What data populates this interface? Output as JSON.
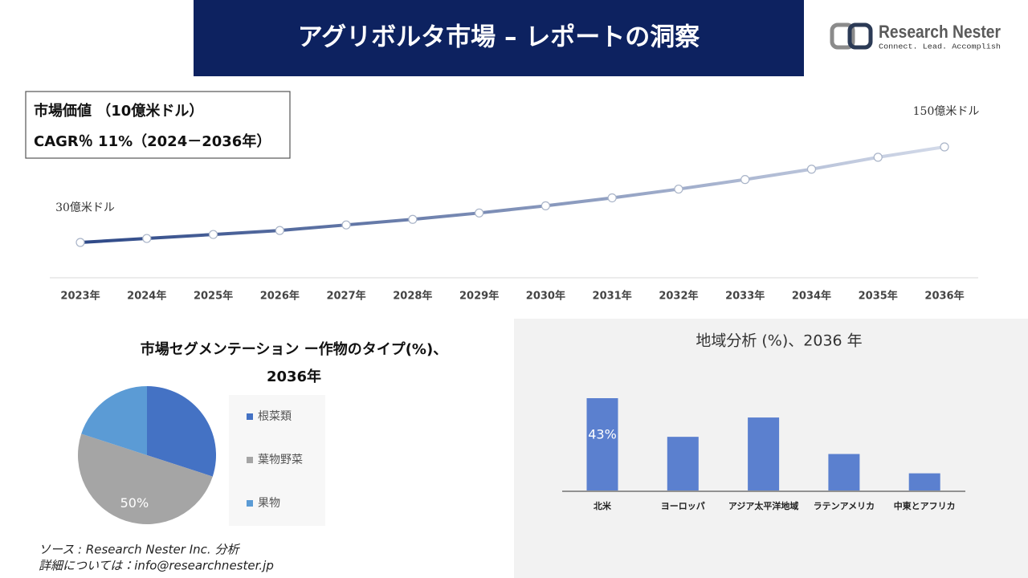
{
  "header": {
    "title": "アグリボルタ市場 – レポートの洞察",
    "logo_name": "Research Nester",
    "logo_tagline": "Connect. Lead. Accomplish"
  },
  "info_box": [
    "市場価値 （10億米ドル）",
    "CAGR％ 11%（2024－2036年）"
  ],
  "chart_data": [
    {
      "type": "line",
      "categories": [
        "2023年",
        "2024年",
        "2025年",
        "2026年",
        "2027年",
        "2028年",
        "2029年",
        "2030年",
        "2031年",
        "2032年",
        "2033年",
        "2034年",
        "2035年",
        "2036年"
      ],
      "values": [
        30,
        35,
        40,
        45,
        52,
        59,
        67,
        76,
        86,
        97,
        109,
        122,
        137,
        150
      ],
      "value_labels": [
        "30億米ドル",
        null,
        null,
        null,
        null,
        null,
        null,
        null,
        null,
        null,
        null,
        null,
        null,
        "150億米ドル"
      ],
      "colors": [
        "#2d4887",
        "#d3dae9"
      ]
    },
    {
      "type": "pie",
      "title": [
        "市場セグメンテーション ー作物のタイプ(%)、",
        "2036年"
      ],
      "categories": [
        "根菜類",
        "葉物野菜",
        "果物"
      ],
      "values": [
        30,
        50,
        20
      ],
      "value_labels": [
        null,
        "50%",
        null
      ],
      "colors": [
        "#4472c4",
        "#a5a5a5",
        "#5b9bd5"
      ]
    },
    {
      "type": "bar",
      "title": "地域分析 (%)、2036 年",
      "categories": [
        "北米",
        "ヨーロッパ",
        "アジア太平洋地域",
        "ラテンアメリカ",
        "中東とアフリカ"
      ],
      "values": [
        43,
        25,
        34,
        17,
        8
      ],
      "value_labels": [
        "43%",
        null,
        null,
        null,
        null
      ],
      "color": "#5b80cf"
    }
  ],
  "source": [
    "ソース : Research Nester Inc. 分析",
    "詳細については：info@researchnester.jp"
  ]
}
